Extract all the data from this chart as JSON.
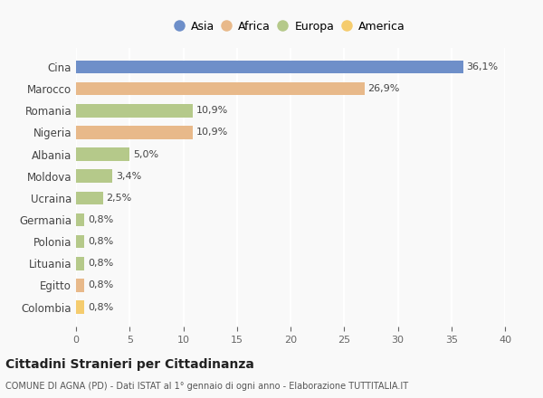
{
  "categories": [
    "Cina",
    "Marocco",
    "Romania",
    "Nigeria",
    "Albania",
    "Moldova",
    "Ucraina",
    "Germania",
    "Polonia",
    "Lituania",
    "Egitto",
    "Colombia"
  ],
  "values": [
    36.1,
    26.9,
    10.9,
    10.9,
    5.0,
    3.4,
    2.5,
    0.8,
    0.8,
    0.8,
    0.8,
    0.8
  ],
  "labels": [
    "36,1%",
    "26,9%",
    "10,9%",
    "10,9%",
    "5,0%",
    "3,4%",
    "2,5%",
    "0,8%",
    "0,8%",
    "0,8%",
    "0,8%",
    "0,8%"
  ],
  "colors": [
    "#6e8fc9",
    "#e8b98a",
    "#b5c98a",
    "#e8b98a",
    "#b5c98a",
    "#b5c98a",
    "#b5c98a",
    "#b5c98a",
    "#b5c98a",
    "#b5c98a",
    "#e8b98a",
    "#f5cc6e"
  ],
  "legend_labels": [
    "Asia",
    "Africa",
    "Europa",
    "America"
  ],
  "legend_colors": [
    "#6e8fc9",
    "#e8b98a",
    "#b5c98a",
    "#f5cc6e"
  ],
  "xlim": [
    0,
    40
  ],
  "xticks": [
    0,
    5,
    10,
    15,
    20,
    25,
    30,
    35,
    40
  ],
  "title": "Cittadini Stranieri per Cittadinanza",
  "subtitle": "COMUNE DI AGNA (PD) - Dati ISTAT al 1° gennaio di ogni anno - Elaborazione TUTTITALIA.IT",
  "background_color": "#f9f9f9",
  "grid_color": "#ffffff",
  "bar_height": 0.6
}
